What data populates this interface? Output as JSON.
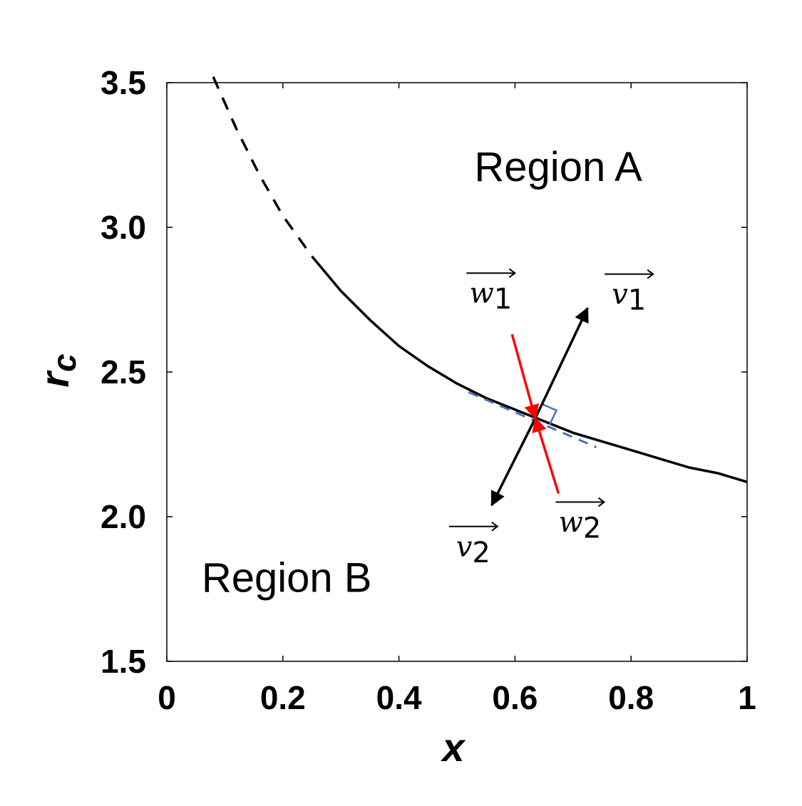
{
  "chart_data": {
    "type": "line",
    "title": "",
    "xlabel": "x",
    "ylabel": "r",
    "ylabel_subscript": "c",
    "xlim": [
      0,
      1
    ],
    "ylim": [
      1.5,
      3.5
    ],
    "xticks": [
      {
        "value": 0,
        "label": "0"
      },
      {
        "value": 0.2,
        "label": "0.2"
      },
      {
        "value": 0.4,
        "label": "0.4"
      },
      {
        "value": 0.6,
        "label": "0.6"
      },
      {
        "value": 0.8,
        "label": "0.8"
      },
      {
        "value": 1,
        "label": "1"
      }
    ],
    "yticks": [
      {
        "value": 1.5,
        "label": "1.5"
      },
      {
        "value": 2.0,
        "label": "2.0"
      },
      {
        "value": 2.5,
        "label": "2.5"
      },
      {
        "value": 3.0,
        "label": "3.0"
      },
      {
        "value": 3.5,
        "label": "3.5"
      }
    ],
    "grid": false,
    "series": [
      {
        "style": "dashed",
        "color": "#000000",
        "x": [
          0.08,
          0.12,
          0.16,
          0.2,
          0.25
        ],
        "y": [
          3.52,
          3.34,
          3.18,
          3.04,
          2.9
        ]
      },
      {
        "style": "solid",
        "color": "#000000",
        "x": [
          0.25,
          0.3,
          0.35,
          0.4,
          0.45,
          0.5,
          0.55,
          0.6,
          0.65,
          0.7,
          0.75,
          0.8,
          0.85,
          0.9,
          0.95,
          1.0
        ],
        "y": [
          2.9,
          2.78,
          2.68,
          2.59,
          2.52,
          2.46,
          2.41,
          2.37,
          2.33,
          2.29,
          2.26,
          2.23,
          2.2,
          2.17,
          2.15,
          2.12
        ]
      }
    ],
    "tangent": {
      "color": "#4a72b8",
      "style": "dashed",
      "x": [
        0.52,
        0.74
      ],
      "y": [
        2.43,
        2.24
      ]
    },
    "point": {
      "x": 0.635,
      "y": 2.34
    },
    "vectors": [
      {
        "name": "v",
        "sub": "1",
        "color": "#000000",
        "from": [
          0.635,
          2.34
        ],
        "to": [
          0.725,
          2.72
        ]
      },
      {
        "name": "v",
        "sub": "2",
        "color": "#000000",
        "from": [
          0.635,
          2.34
        ],
        "to": [
          0.56,
          2.04
        ]
      },
      {
        "name": "w",
        "sub": "1",
        "color": "#ff0000",
        "from": [
          0.595,
          2.63
        ],
        "to": [
          0.635,
          2.34
        ]
      },
      {
        "name": "w",
        "sub": "2",
        "color": "#ff0000",
        "from": [
          0.675,
          2.08
        ],
        "to": [
          0.635,
          2.34
        ]
      }
    ],
    "annotations": [
      {
        "text": "Region A",
        "x": 0.53,
        "y": 3.16
      },
      {
        "text": "Region B",
        "x": 0.06,
        "y": 1.74
      }
    ]
  }
}
